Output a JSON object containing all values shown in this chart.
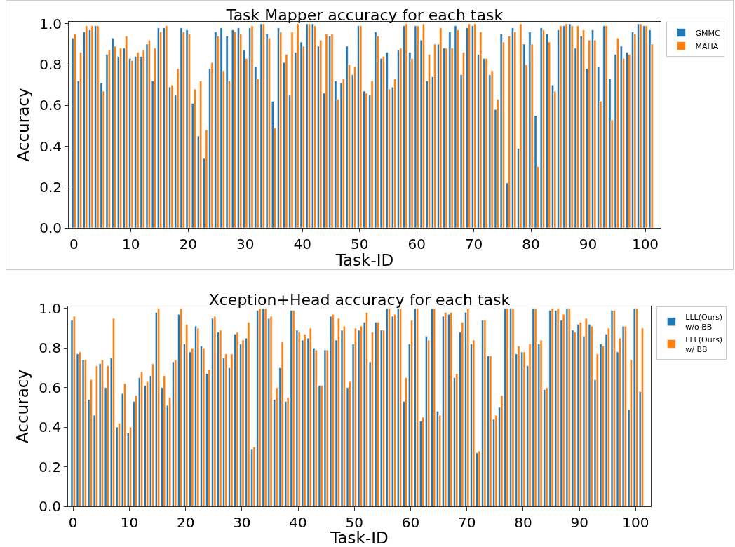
{
  "chart_data": [
    {
      "type": "bar",
      "title": "Task Mapper accuracy for each task",
      "xlabel": "Task-ID",
      "ylabel": "Accuracy",
      "legend": "top right",
      "grid": false,
      "xlim": [
        -0.9,
        102.7
      ],
      "xticks": [
        0,
        10,
        20,
        30,
        40,
        50,
        60,
        70,
        80,
        90,
        100
      ],
      "ylim": [
        0,
        1.01
      ],
      "yticks": [
        {
          "value": 0,
          "label": "0.0"
        },
        {
          "value": 0.2,
          "label": "0.2"
        },
        {
          "value": 0.4,
          "label": "0.4"
        },
        {
          "value": 0.6,
          "label": "0.6"
        },
        {
          "value": 0.8,
          "label": "0.8"
        },
        {
          "value": 1,
          "label": "1.0"
        }
      ],
      "x": [
        0,
        1,
        2,
        3,
        4,
        5,
        6,
        7,
        8,
        9,
        10,
        11,
        12,
        13,
        14,
        15,
        16,
        17,
        18,
        19,
        20,
        21,
        22,
        23,
        24,
        25,
        26,
        27,
        28,
        29,
        30,
        31,
        32,
        33,
        34,
        35,
        36,
        37,
        38,
        39,
        40,
        41,
        42,
        43,
        44,
        45,
        46,
        47,
        48,
        49,
        50,
        51,
        52,
        53,
        54,
        55,
        56,
        57,
        58,
        59,
        60,
        61,
        62,
        63,
        64,
        65,
        66,
        67,
        68,
        69,
        70,
        71,
        72,
        73,
        74,
        75,
        76,
        77,
        78,
        79,
        80,
        81,
        82,
        83,
        84,
        85,
        86,
        87,
        88,
        89,
        90,
        91,
        92,
        93,
        94,
        95,
        96,
        97,
        98,
        99,
        100,
        101
      ],
      "series": [
        {
          "name": "GMMC",
          "color": "#1f77b4",
          "values": [
            0.93,
            0.72,
            0.96,
            0.97,
            0.99,
            0.71,
            0.85,
            0.93,
            0.84,
            0.88,
            0.83,
            0.84,
            0.84,
            0.9,
            0.72,
            0.98,
            0.98,
            0.69,
            0.65,
            0.98,
            0.97,
            0.61,
            0.45,
            0.34,
            0.78,
            0.96,
            0.98,
            0.94,
            0.97,
            0.98,
            0.87,
            0.98,
            0.79,
            1.0,
            0.95,
            0.62,
            0.98,
            0.81,
            0.65,
            0.86,
            0.91,
            1.0,
            1.0,
            0.89,
            0.66,
            0.94,
            0.72,
            0.71,
            0.89,
            0.75,
            0.99,
            0.67,
            0.65,
            0.96,
            0.83,
            0.86,
            0.69,
            0.87,
            0.99,
            0.86,
            0.99,
            0.92,
            0.72,
            0.74,
            0.9,
            0.88,
            0.96,
            0.99,
            0.75,
            0.98,
            0.99,
            0.85,
            0.83,
            0.75,
            0.58,
            0.95,
            0.22,
            0.98,
            0.39,
            0.9,
            0.96,
            0.55,
            0.98,
            0.95,
            0.7,
            0.97,
            0.99,
            1.0,
            0.88,
            0.94,
            0.78,
            0.97,
            0.79,
            0.99,
            0.73,
            0.85,
            0.89,
            0.86,
            0.96,
            1.0,
            0.99,
            0.97
          ]
        },
        {
          "name": "MAHA",
          "color": "#ff7f0e",
          "values": [
            0.95,
            0.86,
            0.99,
            0.99,
            0.99,
            0.67,
            0.87,
            0.89,
            0.88,
            0.94,
            0.82,
            0.86,
            0.87,
            0.92,
            0.88,
            0.96,
            0.99,
            0.7,
            0.78,
            0.96,
            0.95,
            0.68,
            0.72,
            0.48,
            0.81,
            0.94,
            0.77,
            0.72,
            0.96,
            0.95,
            0.83,
            0.99,
            0.73,
            1.0,
            0.93,
            0.49,
            0.96,
            0.85,
            0.96,
            1.0,
            0.89,
            1.0,
            0.99,
            0.92,
            0.95,
            0.95,
            0.63,
            0.73,
            0.8,
            0.79,
            0.99,
            0.66,
            0.72,
            0.94,
            0.84,
            0.68,
            0.73,
            0.88,
            1.0,
            0.83,
            0.99,
            1.0,
            0.85,
            0.9,
            0.98,
            0.88,
            0.88,
            0.97,
            0.86,
            1.0,
            1.0,
            0.96,
            0.83,
            0.77,
            0.63,
            0.91,
            0.94,
            0.96,
            1.0,
            0.8,
            0.9,
            0.3,
            0.97,
            0.91,
            0.67,
            0.99,
            1.0,
            0.99,
            0.99,
            0.97,
            0.92,
            0.92,
            0.62,
            0.99,
            0.53,
            0.93,
            0.83,
            0.85,
            0.95,
            1.0,
            0.99,
            0.9
          ]
        }
      ]
    },
    {
      "type": "bar",
      "title": "Xception+Head accuracy for each task",
      "xlabel": "Task-ID",
      "ylabel": "Accuracy",
      "legend": "top right",
      "grid": false,
      "xlim": [
        -0.9,
        102.7
      ],
      "xticks": [
        0,
        10,
        20,
        30,
        40,
        50,
        60,
        70,
        80,
        90,
        100
      ],
      "ylim": [
        0,
        1.01
      ],
      "yticks": [
        {
          "value": 0,
          "label": "0.0"
        },
        {
          "value": 0.2,
          "label": "0.2"
        },
        {
          "value": 0.4,
          "label": "0.4"
        },
        {
          "value": 0.6,
          "label": "0.6"
        },
        {
          "value": 0.8,
          "label": "0.8"
        },
        {
          "value": 1,
          "label": "1.0"
        }
      ],
      "x": [
        0,
        1,
        2,
        3,
        4,
        5,
        6,
        7,
        8,
        9,
        10,
        11,
        12,
        13,
        14,
        15,
        16,
        17,
        18,
        19,
        20,
        21,
        22,
        23,
        24,
        25,
        26,
        27,
        28,
        29,
        30,
        31,
        32,
        33,
        34,
        35,
        36,
        37,
        38,
        39,
        40,
        41,
        42,
        43,
        44,
        45,
        46,
        47,
        48,
        49,
        50,
        51,
        52,
        53,
        54,
        55,
        56,
        57,
        58,
        59,
        60,
        61,
        62,
        63,
        64,
        65,
        66,
        67,
        68,
        69,
        70,
        71,
        72,
        73,
        74,
        75,
        76,
        77,
        78,
        79,
        80,
        81,
        82,
        83,
        84,
        85,
        86,
        87,
        88,
        89,
        90,
        91,
        92,
        93,
        94,
        95,
        96,
        97,
        98,
        99,
        100,
        101
      ],
      "series": [
        {
          "name": "LLL(Ours)\nw/o BB",
          "color": "#1f77b4",
          "values": [
            0.94,
            0.77,
            0.74,
            0.54,
            0.46,
            0.72,
            0.6,
            0.75,
            0.4,
            0.57,
            0.37,
            0.53,
            0.65,
            0.61,
            0.66,
            0.98,
            0.6,
            0.51,
            0.73,
            0.97,
            0.82,
            0.78,
            0.91,
            0.81,
            0.67,
            0.95,
            0.88,
            0.75,
            0.7,
            0.87,
            0.82,
            0.85,
            0.29,
            0.99,
            1.0,
            0.95,
            0.54,
            0.7,
            0.53,
            0.99,
            0.89,
            0.84,
            0.85,
            0.8,
            0.61,
            0.79,
            0.96,
            0.84,
            0.89,
            0.6,
            0.82,
            0.89,
            0.93,
            0.73,
            0.93,
            0.89,
            1.0,
            0.96,
            1.0,
            0.53,
            0.82,
            1.0,
            0.43,
            0.86,
            1.0,
            0.48,
            0.96,
            0.97,
            0.65,
            0.88,
            0.98,
            0.82,
            0.27,
            0.94,
            0.76,
            0.44,
            0.5,
            1.0,
            1.0,
            0.77,
            0.78,
            0.71,
            1.0,
            0.82,
            0.59,
            0.99,
            0.99,
            0.94,
            1.0,
            0.89,
            0.92,
            0.86,
            0.92,
            0.64,
            0.82,
            0.87,
            0.99,
            0.78,
            0.91,
            0.49,
            1.0,
            0.58
          ]
        },
        {
          "name": "LLL(Ours)\nw/ BB",
          "color": "#ff7f0e",
          "values": [
            0.96,
            0.78,
            0.74,
            0.64,
            0.71,
            0.74,
            0.71,
            0.95,
            0.42,
            0.62,
            0.4,
            0.56,
            0.68,
            0.63,
            0.72,
            1.0,
            0.66,
            0.55,
            0.74,
            1.0,
            0.92,
            0.8,
            0.9,
            0.8,
            0.69,
            0.96,
            0.89,
            0.77,
            0.77,
            0.88,
            0.84,
            0.93,
            0.3,
            1.0,
            1.0,
            0.96,
            0.6,
            0.83,
            0.55,
            0.99,
            0.88,
            0.87,
            0.9,
            0.79,
            0.61,
            0.79,
            0.97,
            0.95,
            0.91,
            0.63,
            0.9,
            0.91,
            0.98,
            0.88,
            0.93,
            0.89,
            1.0,
            0.97,
            1.0,
            0.65,
            0.94,
            1.0,
            0.45,
            0.84,
            1.0,
            0.46,
            0.98,
            0.98,
            0.67,
            0.93,
            1.0,
            0.84,
            0.28,
            0.94,
            0.76,
            0.46,
            0.56,
            1.0,
            1.0,
            0.81,
            0.78,
            0.82,
            1.0,
            0.84,
            0.6,
            1.0,
            1.0,
            0.97,
            1.0,
            0.88,
            0.93,
            0.95,
            0.91,
            0.77,
            0.81,
            0.9,
            0.99,
            0.85,
            0.91,
            0.74,
            1.0,
            0.9
          ]
        }
      ]
    }
  ]
}
